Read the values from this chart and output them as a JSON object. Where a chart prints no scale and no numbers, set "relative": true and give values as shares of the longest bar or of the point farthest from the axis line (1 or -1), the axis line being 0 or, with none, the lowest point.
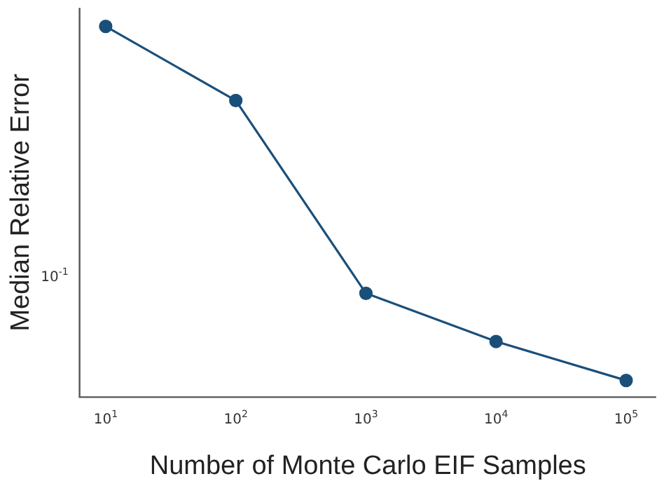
{
  "chart_data": {
    "type": "line",
    "relative": true,
    "xlabel": "Number of Monte Carlo EIF Samples",
    "ylabel": "Median Relative Error",
    "log": "x",
    "x": [
      10,
      100,
      1000,
      10000,
      100000
    ],
    "series": [
      {
        "color": "#1a4f7a",
        "values": [
          1,
          0.8,
          0.28,
          0.15,
          0.045
        ]
      }
    ],
    "xlim": [
      6.3,
      170000
    ],
    "xticks": [
      {
        "value": 10,
        "label": "10$^{1}$"
      },
      {
        "value": 100,
        "label": "10$^{2}$"
      },
      {
        "value": 1000,
        "label": "10$^{3}$"
      },
      {
        "value": 10000,
        "label": "10$^{4}$"
      },
      {
        "value": 100000,
        "label": "10$^{5}$"
      }
    ],
    "annotations": [
      "10$^{-1}$"
    ],
    "marker": "circle",
    "line_style": "solid",
    "grid": false,
    "legend": false
  }
}
